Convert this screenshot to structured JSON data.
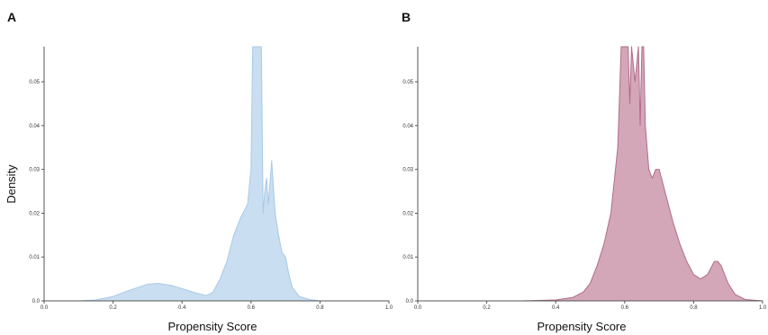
{
  "chart_data": [
    {
      "panel_label": "A",
      "type": "area",
      "xlabel": "Propensity Score",
      "ylabel": "Density",
      "xlim": [
        0.0,
        1.0
      ],
      "ylim": [
        0.0,
        0.058
      ],
      "xticks": [
        "0.0",
        "0.2",
        "0.4",
        "0.6",
        "0.8",
        "1.0"
      ],
      "yticks": [
        "0.0",
        "0.01",
        "0.02",
        "0.03",
        "0.04",
        "0.05"
      ],
      "grid": false,
      "fill_color": "#c9def0",
      "line_color": "#a9c9e6",
      "series": [
        {
          "x": [
            0.0,
            0.1,
            0.15,
            0.2,
            0.25,
            0.3,
            0.33,
            0.37,
            0.4,
            0.44,
            0.47,
            0.49,
            0.51,
            0.53,
            0.55,
            0.57,
            0.59,
            0.6,
            0.605,
            0.61,
            0.62,
            0.63,
            0.635,
            0.64,
            0.645,
            0.65,
            0.66,
            0.67,
            0.68,
            0.69,
            0.7,
            0.71,
            0.72,
            0.74,
            0.77,
            0.8,
            0.9,
            1.0
          ],
          "y": [
            0.0,
            0.0,
            0.0002,
            0.001,
            0.0025,
            0.0038,
            0.004,
            0.0035,
            0.0028,
            0.0018,
            0.0012,
            0.002,
            0.005,
            0.009,
            0.015,
            0.019,
            0.022,
            0.03,
            0.058,
            0.058,
            0.058,
            0.058,
            0.02,
            0.025,
            0.028,
            0.022,
            0.032,
            0.02,
            0.015,
            0.011,
            0.01,
            0.006,
            0.003,
            0.001,
            0.0003,
            0.0,
            0.0,
            0.0
          ]
        }
      ]
    },
    {
      "panel_label": "B",
      "type": "area",
      "xlabel": "Propensity Score",
      "ylabel": "",
      "xlim": [
        0.0,
        1.0
      ],
      "ylim": [
        0.0,
        0.058
      ],
      "xticks": [
        "0.0",
        "0.2",
        "0.4",
        "0.6",
        "0.8",
        "1.0"
      ],
      "yticks": [
        "0.0",
        "0.01",
        "0.02",
        "0.03",
        "0.04",
        "0.05"
      ],
      "grid": false,
      "fill_color": "#d4a7b8",
      "line_color": "#b06c8a",
      "series": [
        {
          "x": [
            0.0,
            0.3,
            0.4,
            0.45,
            0.48,
            0.5,
            0.52,
            0.54,
            0.56,
            0.58,
            0.59,
            0.6,
            0.61,
            0.615,
            0.62,
            0.63,
            0.64,
            0.645,
            0.65,
            0.655,
            0.66,
            0.67,
            0.68,
            0.69,
            0.7,
            0.72,
            0.74,
            0.76,
            0.78,
            0.8,
            0.82,
            0.84,
            0.86,
            0.87,
            0.88,
            0.9,
            0.92,
            0.95,
            1.0
          ],
          "y": [
            0.0,
            0.0,
            0.0002,
            0.0008,
            0.002,
            0.004,
            0.008,
            0.013,
            0.02,
            0.035,
            0.058,
            0.058,
            0.058,
            0.045,
            0.058,
            0.05,
            0.058,
            0.04,
            0.058,
            0.058,
            0.04,
            0.03,
            0.028,
            0.03,
            0.03,
            0.024,
            0.018,
            0.013,
            0.009,
            0.006,
            0.005,
            0.006,
            0.009,
            0.009,
            0.008,
            0.004,
            0.0015,
            0.0003,
            0.0
          ]
        }
      ]
    }
  ]
}
